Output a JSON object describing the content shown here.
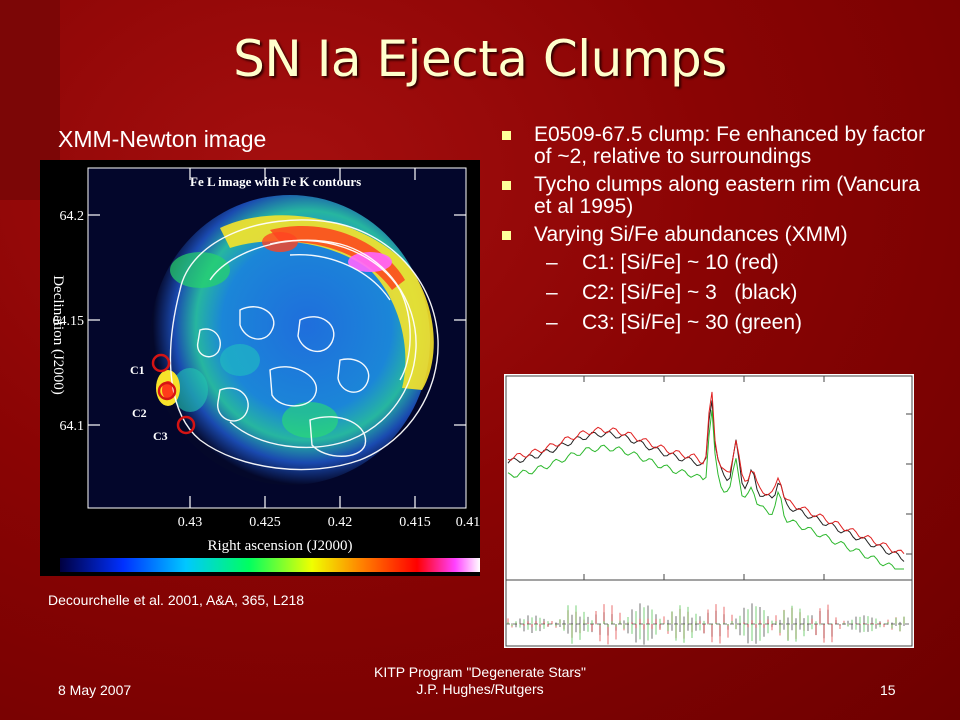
{
  "slide": {
    "title": "SN Ia Ejecta Clumps",
    "image_label": "XMM-Newton image",
    "citation": "Decourchelle et al. 2001, A&A, 365, L218",
    "bullets": [
      {
        "text": "E0509-67.5 clump: Fe enhanced by factor of ~2, relative to surroundings"
      },
      {
        "text": "Tycho clumps along eastern rim (Vancura et al 1995)"
      },
      {
        "text": "Varying Si/Fe abundances (XMM)"
      }
    ],
    "sub_bullets": [
      {
        "dash": "–",
        "text": "C1: [Si/Fe] ~ 10 (red)"
      },
      {
        "dash": "–",
        "text": "C2: [Si/Fe] ~ 3   (black)"
      },
      {
        "dash": "–",
        "text": "C3: [Si/Fe] ~ 30 (green)"
      }
    ],
    "footer": {
      "date": "8 May 2007",
      "line1": "KITP Program \"Degenerate Stars\"",
      "line2": "J.P. Hughes/Rutgers",
      "page": "15"
    }
  },
  "xmm_image": {
    "inner_title": "Fe L image with Fe K contours",
    "xlabel": "Right ascension (J2000)",
    "ylabel": "Declination (J2000)",
    "xticks": [
      "0.43",
      "0.425",
      "0.42",
      "0.415",
      "0.41"
    ],
    "yticks": [
      "64.2",
      "64.15",
      "64.1"
    ],
    "clump_labels": [
      "C1",
      "C2",
      "C3"
    ],
    "clump_color": "#d41414"
  },
  "colors": {
    "background": "#8a0404",
    "title": "#ffffcc",
    "bullet": "#ffff99",
    "spectrum_red": "#e02020",
    "spectrum_black": "#222222",
    "spectrum_green": "#2db82d"
  }
}
